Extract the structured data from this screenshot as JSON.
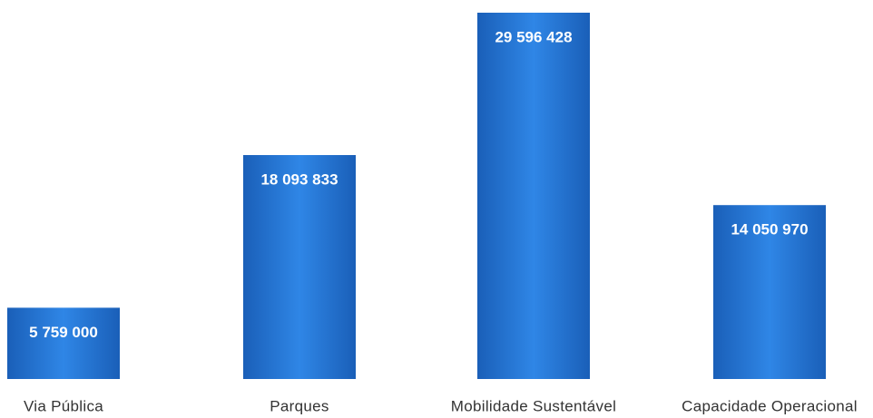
{
  "chart_data": {
    "type": "bar",
    "categories": [
      "Via Pública",
      "Parques",
      "Mobilidade Sustentável",
      "Capacidade Operacional"
    ],
    "values": [
      5759000,
      18093833,
      29596428,
      14050970
    ],
    "value_labels": [
      "5 759 000",
      "18 093 833",
      "29 596 428",
      "14 050 970"
    ],
    "color": "#1f6fd0"
  }
}
